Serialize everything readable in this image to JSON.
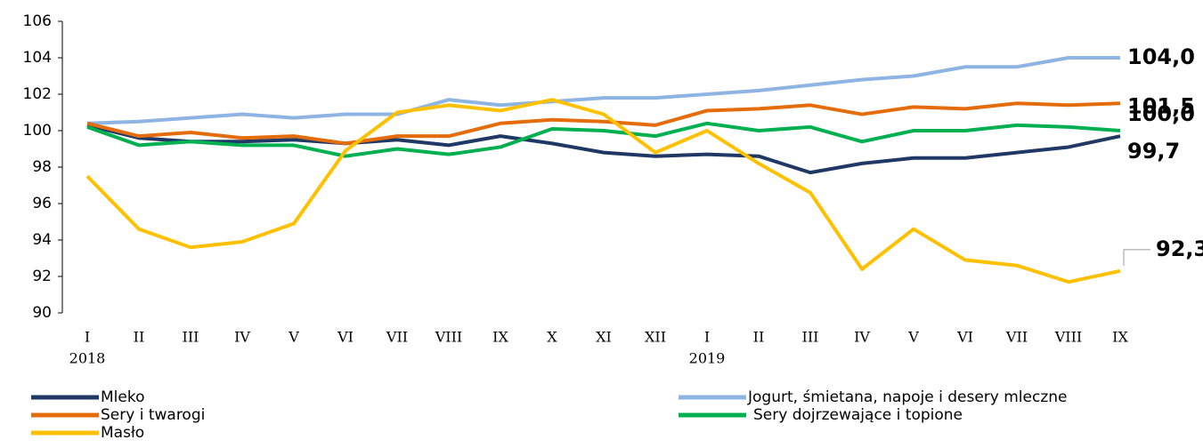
{
  "chart_data": {
    "type": "line",
    "categories": [
      [
        "I",
        "2018"
      ],
      [
        "II"
      ],
      [
        "III"
      ],
      [
        "IV"
      ],
      [
        "V"
      ],
      [
        "VI"
      ],
      [
        "VII"
      ],
      [
        "VIII"
      ],
      [
        "IX"
      ],
      [
        "X"
      ],
      [
        "XI"
      ],
      [
        "XII"
      ],
      [
        "I",
        "2019"
      ],
      [
        "II"
      ],
      [
        "III"
      ],
      [
        "IV"
      ],
      [
        "V"
      ],
      [
        "VI"
      ],
      [
        "VII"
      ],
      [
        "VIII"
      ],
      [
        "IX"
      ]
    ],
    "ylim": [
      90,
      106
    ],
    "yticks": [
      90,
      92,
      94,
      96,
      98,
      100,
      102,
      104,
      106
    ],
    "series": [
      {
        "name": "Mleko",
        "color": "#1f3864",
        "values": [
          100.3,
          99.6,
          99.4,
          99.4,
          99.5,
          99.3,
          99.5,
          99.2,
          99.7,
          99.3,
          98.8,
          98.6,
          98.7,
          98.6,
          97.7,
          98.2,
          98.5,
          98.5,
          98.8,
          99.1,
          99.7
        ],
        "value_labels": [
          null,
          null,
          null,
          null,
          null,
          null,
          null,
          null,
          null,
          null,
          null,
          null,
          null,
          null,
          null,
          null,
          null,
          null,
          null,
          null,
          "99,7"
        ]
      },
      {
        "name": "Jogurt, śmietana, napoje i desery mleczne",
        "color": "#8eb4e3",
        "values": [
          100.4,
          100.5,
          100.7,
          100.9,
          100.7,
          100.9,
          100.9,
          101.7,
          101.4,
          101.6,
          101.8,
          101.8,
          102.0,
          102.2,
          102.5,
          102.8,
          103.0,
          103.5,
          103.5,
          104.0,
          104.0
        ],
        "value_labels": [
          null,
          null,
          null,
          null,
          null,
          null,
          null,
          null,
          null,
          null,
          null,
          null,
          null,
          null,
          null,
          null,
          null,
          null,
          null,
          null,
          "104,0"
        ]
      },
      {
        "name": "Sery i twarogi",
        "color": "#e46c0a",
        "values": [
          100.4,
          99.7,
          99.9,
          99.6,
          99.7,
          99.3,
          99.7,
          99.7,
          100.4,
          100.6,
          100.5,
          100.3,
          101.1,
          101.2,
          101.4,
          100.9,
          101.3,
          101.2,
          101.5,
          101.4,
          101.5
        ],
        "value_labels": [
          null,
          null,
          null,
          null,
          null,
          null,
          null,
          null,
          null,
          null,
          null,
          null,
          null,
          null,
          null,
          null,
          null,
          null,
          null,
          null,
          "101,5"
        ]
      },
      {
        "name": "Sery dojrzewające i topione",
        "color": "#00b050",
        "values": [
          100.2,
          99.2,
          99.4,
          99.2,
          99.2,
          98.6,
          99.0,
          98.7,
          99.1,
          100.1,
          100.0,
          99.7,
          100.4,
          100.0,
          100.2,
          99.4,
          100.0,
          100.0,
          100.3,
          100.2,
          100.0
        ],
        "value_labels": [
          null,
          null,
          null,
          null,
          null,
          null,
          null,
          null,
          null,
          null,
          null,
          null,
          null,
          null,
          null,
          null,
          null,
          null,
          null,
          null,
          "100,0"
        ]
      },
      {
        "name": "Masło",
        "color": "#ffc000",
        "values": [
          97.5,
          94.6,
          93.6,
          93.9,
          94.9,
          98.9,
          101.0,
          101.4,
          101.1,
          101.7,
          100.9,
          98.8,
          100.0,
          98.2,
          96.6,
          92.4,
          94.6,
          92.9,
          92.6,
          91.7,
          92.3
        ],
        "value_labels": [
          null,
          null,
          null,
          null,
          null,
          null,
          null,
          null,
          null,
          null,
          null,
          null,
          null,
          null,
          null,
          null,
          null,
          null,
          null,
          null,
          "92,3"
        ]
      }
    ]
  }
}
